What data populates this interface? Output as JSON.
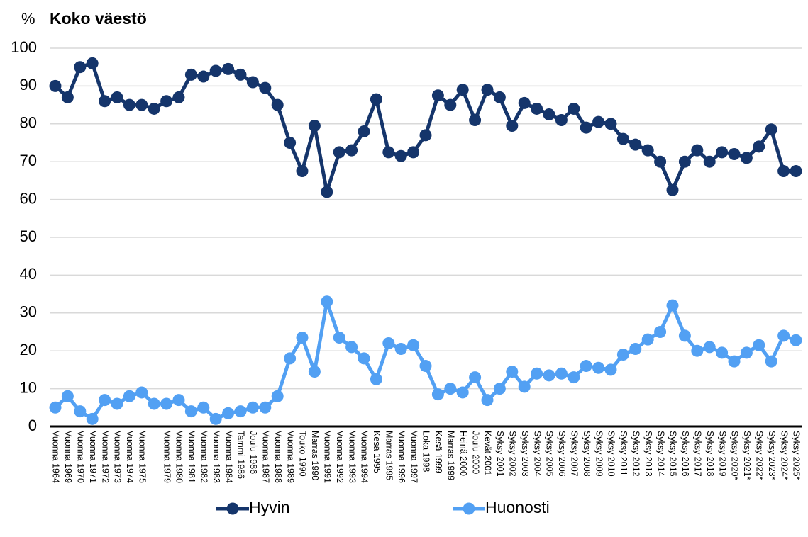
{
  "chart_data": {
    "type": "line",
    "unit_label": "%",
    "title": "Koko väestö",
    "categories": [
      "Vuonna 1964",
      "Vuonna 1969",
      "Vuonna 1970",
      "Vuonna 1971",
      "Vuonna 1972",
      "Vuonna 1973",
      "Vuonna 1974",
      "Vuonna 1975",
      null,
      "Vuonna 1979",
      "Vuonna 1980",
      "Vuonna 1981",
      "Vuonna 1982",
      "Vuonna 1983",
      "Vuonna 1984",
      "Tammi 1986",
      "Joulu 1986",
      "Vuonna 1987",
      "Vuonna 1988",
      "Vuonna 1989",
      "Touko 1990",
      "Marras 1990",
      "Vuonna 1991",
      "Vuonna 1992",
      "Vuonna 1993",
      "Vuonna 1994",
      "Kesä 1995",
      "Marras 1995",
      "Vuonna 1996",
      "Vuonna 1997",
      "Loka 1998",
      "Kesä 1999",
      "Marras 1999",
      "Heinä 2000",
      "Joulu 2000",
      "Kevät 2001",
      "Syksy 2001",
      "Syksy 2002",
      "Syksy 2003",
      "Syksy 2004",
      "Syksy 2005",
      "Syksy 2006",
      "Syksy 2007",
      "Syksy 2008",
      "Syksy 2009",
      "Syksy 2010",
      "Syksy 2011",
      "Syksy 2012",
      "Syksy 2013",
      "Syksy 2014",
      "Syksy 2015",
      "Syksy 2016",
      "Syksy 2017",
      "Syksy 2018",
      "Syksy 2019",
      "Syksy 2020*",
      "Syksy 2021*",
      "Syksy 2022*",
      "Syksy 2023*",
      "Syksy 2024*",
      "Syksy 2025*"
    ],
    "series": [
      {
        "name": "Hyvin",
        "color": "#15356b",
        "values": [
          90,
          87,
          95,
          96,
          86,
          87,
          85,
          85,
          84,
          86,
          87,
          93,
          92.5,
          94,
          94.5,
          93,
          91,
          89.5,
          85,
          75,
          67.5,
          79.5,
          62,
          72.5,
          73,
          78,
          86.5,
          72.5,
          71.5,
          72.5,
          77,
          87.5,
          85,
          89,
          81,
          89,
          87,
          79.5,
          85.5,
          84,
          82.5,
          81,
          84,
          79,
          80.5,
          80,
          76,
          74.5,
          73,
          70,
          62.5,
          70,
          73,
          70,
          72.5,
          72,
          71,
          74,
          78.5,
          67.5,
          67.5
        ]
      },
      {
        "name": "Huonosti",
        "color": "#52a0f3",
        "values": [
          5,
          8,
          4,
          2,
          7,
          6,
          8,
          9,
          6,
          6,
          7,
          4,
          5,
          2,
          3.5,
          4,
          5,
          5,
          8,
          18,
          23.5,
          14.5,
          33,
          23.5,
          21,
          18,
          12.5,
          22,
          20.5,
          21.5,
          16,
          8.5,
          10,
          9,
          13,
          7,
          10,
          14.5,
          10.5,
          14,
          13.5,
          14,
          13,
          16,
          15.5,
          15,
          19,
          20.5,
          23,
          25,
          32,
          24,
          20,
          21,
          19.5,
          17.2,
          19.5,
          21.5,
          17.2,
          24,
          22.8
        ]
      }
    ],
    "ylim": [
      0,
      100
    ],
    "yticks": [
      0,
      10,
      20,
      30,
      40,
      50,
      60,
      70,
      80,
      90,
      100
    ],
    "grid": true,
    "legend": "bottom"
  }
}
